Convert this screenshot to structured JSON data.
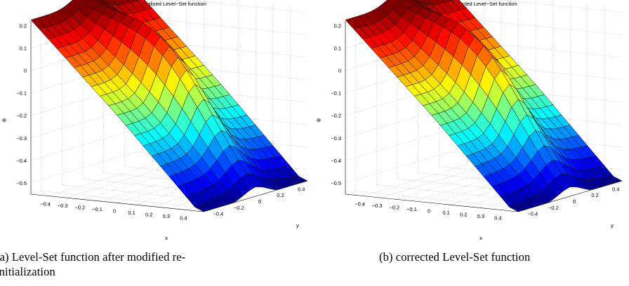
{
  "figures": [
    {
      "caption": "(a) Level-Set function after modified re-initialization",
      "caption_lines": [
        "(a) Level-Set function after modified re-",
        "initialization"
      ]
    },
    {
      "caption": "(b) corrected Level-Set function",
      "caption_lines": [
        "(b) corrected Level-Set function"
      ]
    }
  ],
  "chart_data": [
    {
      "type": "surface",
      "title": "re−initialized Level−Set function",
      "xlabel": "x",
      "ylabel": "y",
      "zlabel": "Φ",
      "xlim": [
        -0.5,
        0.5
      ],
      "ylim": [
        -0.5,
        0.5
      ],
      "zlim": [
        -0.55,
        0.22
      ],
      "x_ticks": [
        "−0.4",
        "−0.3",
        "−0.2",
        "−0.1",
        "0",
        "0.1",
        "0.2",
        "0.3",
        "0.4"
      ],
      "y_ticks": [
        "−0.4",
        "−0.2",
        "0",
        "0.2",
        "0.4"
      ],
      "z_ticks": [
        "0.2",
        "0.1",
        "0",
        "−0.1",
        "−0.2",
        "−0.3",
        "−0.4",
        "−0.5"
      ],
      "grid": true,
      "colormap": "jet",
      "surface": "sloped sheet from Φ≈0.22 at x=−0.5 to Φ≈−0.55 at x=0.5, with a ridge along y=0 peaking near Φ≈0.1 at x≈0"
    },
    {
      "type": "surface",
      "title": "corrected Level−Set function",
      "xlabel": "x",
      "ylabel": "y",
      "zlabel": "Φ",
      "xlim": [
        -0.5,
        0.5
      ],
      "ylim": [
        -0.5,
        0.5
      ],
      "zlim": [
        -0.55,
        0.22
      ],
      "x_ticks": [
        "−0.4",
        "−0.3",
        "−0.2",
        "−0.1",
        "0",
        "0.1",
        "0.2",
        "0.3",
        "0.4"
      ],
      "y_ticks": [
        "−0.4",
        "−0.2",
        "0",
        "0.2",
        "0.4"
      ],
      "z_ticks": [
        "0.2",
        "0.1",
        "0",
        "−0.1",
        "−0.2",
        "−0.3",
        "−0.4",
        "−0.5"
      ],
      "grid": true,
      "colormap": "jet",
      "surface": "sloped sheet from Φ≈0.22 at x=−0.5 to Φ≈−0.55 at x=0.5, with a ridge along y=0 peaking near Φ≈0.1 at x≈0"
    }
  ]
}
